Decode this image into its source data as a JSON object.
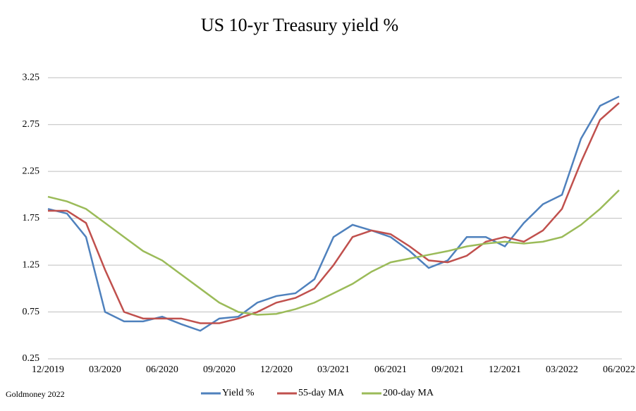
{
  "chart_data": {
    "type": "line",
    "title": "US 10-yr Treasury yield %",
    "x": [
      "12/2019",
      "01/2020",
      "02/2020",
      "03/2020",
      "04/2020",
      "05/2020",
      "06/2020",
      "07/2020",
      "08/2020",
      "09/2020",
      "10/2020",
      "11/2020",
      "12/2020",
      "01/2021",
      "02/2021",
      "03/2021",
      "04/2021",
      "05/2021",
      "06/2021",
      "07/2021",
      "08/2021",
      "09/2021",
      "10/2021",
      "11/2021",
      "12/2021",
      "01/2022",
      "02/2022",
      "03/2022",
      "04/2022",
      "05/2022",
      "06/2022"
    ],
    "xtick_every": 3,
    "series": [
      {
        "name": "Yield %",
        "color": "#4f81bd",
        "values": [
          1.85,
          1.8,
          1.55,
          0.75,
          0.65,
          0.65,
          0.7,
          0.62,
          0.55,
          0.68,
          0.7,
          0.85,
          0.92,
          0.95,
          1.1,
          1.55,
          1.68,
          1.62,
          1.55,
          1.4,
          1.22,
          1.3,
          1.55,
          1.55,
          1.45,
          1.7,
          1.9,
          2.0,
          2.6,
          2.95,
          3.05
        ]
      },
      {
        "name": "55-day MA",
        "color": "#c0504d",
        "values": [
          1.83,
          1.83,
          1.7,
          1.2,
          0.75,
          0.68,
          0.68,
          0.68,
          0.63,
          0.63,
          0.68,
          0.75,
          0.85,
          0.9,
          1.0,
          1.25,
          1.55,
          1.62,
          1.58,
          1.45,
          1.3,
          1.28,
          1.35,
          1.5,
          1.55,
          1.5,
          1.62,
          1.85,
          2.35,
          2.8,
          2.98
        ]
      },
      {
        "name": "200-day MA",
        "color": "#9bbb59",
        "values": [
          1.98,
          1.93,
          1.85,
          1.7,
          1.55,
          1.4,
          1.3,
          1.15,
          1.0,
          0.85,
          0.75,
          0.72,
          0.73,
          0.78,
          0.85,
          0.95,
          1.05,
          1.18,
          1.28,
          1.32,
          1.36,
          1.4,
          1.45,
          1.48,
          1.5,
          1.48,
          1.5,
          1.55,
          1.68,
          1.85,
          2.05
        ]
      }
    ],
    "ylim": [
      0.25,
      3.5
    ],
    "yticks": [
      0.25,
      0.75,
      1.25,
      1.75,
      2.25,
      2.75,
      3.25
    ],
    "grid": true,
    "legend": "bottom",
    "source": "Goldmoney 2022"
  }
}
